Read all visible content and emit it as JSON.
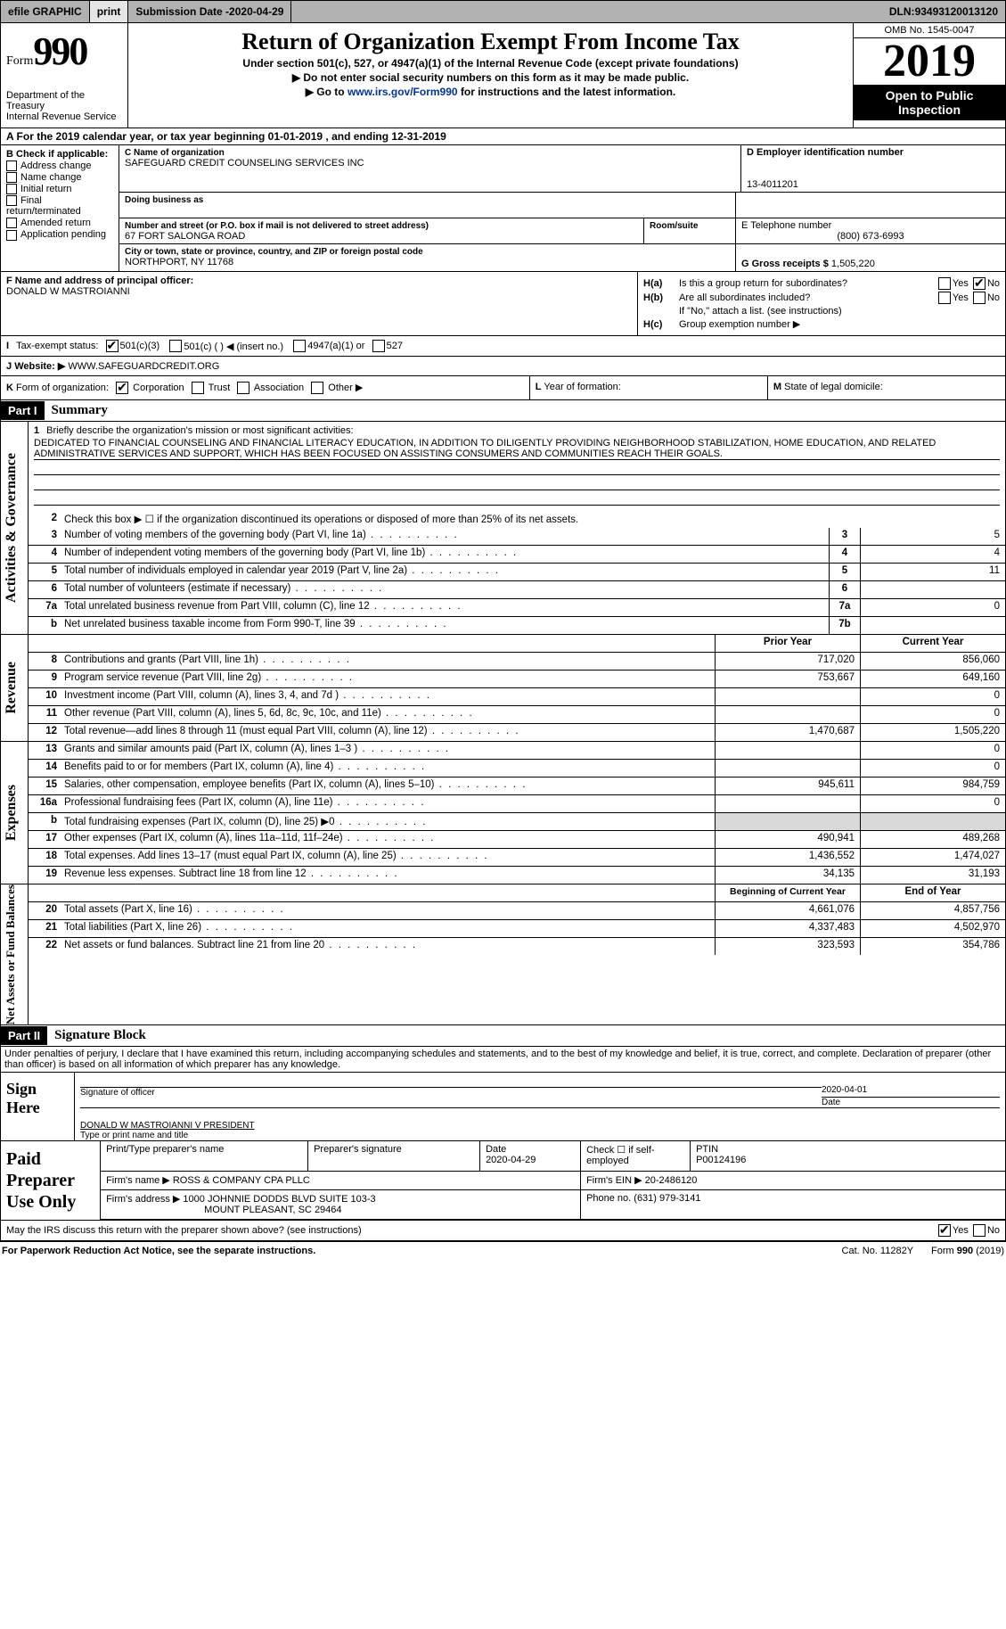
{
  "colors": {
    "topbar_bg": "#b2b2b2",
    "btn_bg": "#e6e6e6",
    "black": "#000000",
    "white": "#ffffff",
    "shade": "#d9d9d9",
    "link": "#003399"
  },
  "fonts": {
    "serif": "Times New Roman",
    "sans": "Arial",
    "title_size": 26,
    "year_size": 52,
    "form_num_size": 44,
    "body_size": 12,
    "small": 11
  },
  "topbar": {
    "efile": "efile GRAPHIC",
    "print": "print",
    "subdate_label": "Submission Date - ",
    "subdate": "2020-04-29",
    "dln_label": "DLN: ",
    "dln": "93493120013120"
  },
  "header": {
    "form_word": "Form",
    "form_num": "990",
    "dept": "Department of the Treasury\nInternal Revenue Service",
    "title": "Return of Organization Exempt From Income Tax",
    "sub1": "Under section 501(c), 527, or 4947(a)(1) of the Internal Revenue Code (except private foundations)",
    "sub2": "▶ Do not enter social security numbers on this form as it may be made public.",
    "sub3a": "▶ Go to ",
    "sub3link": "www.irs.gov/Form990",
    "sub3b": " for instructions and the latest information.",
    "omb": "OMB No. 1545-0047",
    "year": "2019",
    "otp": "Open to Public Inspection"
  },
  "lineA": {
    "left": "A  For the 2019 calendar year, or tax year beginning ",
    "begin": "01-01-2019",
    "mid": "  , and ending ",
    "end": "12-31-2019"
  },
  "boxB": {
    "label": "B Check if applicable:",
    "items": [
      "Address change",
      "Name change",
      "Initial return",
      "Final return/terminated",
      "Amended return",
      "Application pending"
    ]
  },
  "boxC": {
    "name_label": "C Name of organization",
    "name": "SAFEGUARD CREDIT COUNSELING SERVICES INC",
    "dba_label": "Doing business as",
    "dba": "",
    "street_label": "Number and street (or P.O. box if mail is not delivered to street address)",
    "room_label": "Room/suite",
    "street": "67 FORT SALONGA ROAD",
    "room": "",
    "city_label": "City or town, state or province, country, and ZIP or foreign postal code",
    "city": "NORTHPORT, NY  11768"
  },
  "boxD": {
    "label": "D Employer identification number",
    "value": "13-4011201"
  },
  "boxE": {
    "label": "E Telephone number",
    "value": "(800) 673-6993"
  },
  "boxG": {
    "label": "G Gross receipts $ ",
    "value": "1,505,220"
  },
  "boxF": {
    "label": "F Name and address of principal officer:",
    "value": "DONALD W MASTROIANNI"
  },
  "boxH": {
    "a_label": "H(a)",
    "a_q": "Is this a group return for subordinates?",
    "a_yes": "Yes",
    "a_no": "No",
    "a_checked": "No",
    "b_label": "H(b)",
    "b_q": "Are all subordinates included?",
    "b_yes": "Yes",
    "b_no": "No",
    "note": "If \"No,\" attach a list. (see instructions)",
    "c_label": "H(c)",
    "c_q": "Group exemption number ▶"
  },
  "lineI": {
    "label": "I",
    "txt": "Tax-exempt status:",
    "opts": [
      "501(c)(3)",
      "501(c) (     ) ◀ (insert no.)",
      "4947(a)(1) or",
      "527"
    ],
    "checked": 0
  },
  "lineJ": {
    "label": "J",
    "txt": "Website: ▶",
    "value": "WWW.SAFEGUARDCREDIT.ORG"
  },
  "lineK": {
    "label": "K",
    "txt": "Form of organization:",
    "opts": [
      "Corporation",
      "Trust",
      "Association",
      "Other ▶"
    ],
    "checked": 0
  },
  "lineL": {
    "label": "L",
    "txt": "Year of formation:",
    "value": ""
  },
  "lineM": {
    "label": "M",
    "txt": "State of legal domicile:",
    "value": ""
  },
  "part1": {
    "label": "Part I",
    "title": "Summary"
  },
  "mission": {
    "num": "1",
    "label": "Briefly describe the organization's mission or most significant activities:",
    "text": "DEDICATED TO FINANCIAL COUNSELING AND FINANCIAL LITERACY EDUCATION, IN ADDITION TO DILIGENTLY PROVIDING NEIGHBORHOOD STABILIZATION, HOME EDUCATION, AND RELATED ADMINISTRATIVE SERVICES AND SUPPORT, WHICH HAS BEEN FOCUSED ON ASSISTING CONSUMERS AND COMMUNITIES REACH THEIR GOALS."
  },
  "gov": {
    "sidelabel": "Activities & Governance",
    "line2": "Check this box ▶ ☐ if the organization discontinued its operations or disposed of more than 25% of its net assets.",
    "rows": [
      {
        "num": "3",
        "txt": "Number of voting members of the governing body (Part VI, line 1a)",
        "rnum": "3",
        "val": "5"
      },
      {
        "num": "4",
        "txt": "Number of independent voting members of the governing body (Part VI, line 1b)",
        "rnum": "4",
        "val": "4"
      },
      {
        "num": "5",
        "txt": "Total number of individuals employed in calendar year 2019 (Part V, line 2a)",
        "rnum": "5",
        "val": "11"
      },
      {
        "num": "6",
        "txt": "Total number of volunteers (estimate if necessary)",
        "rnum": "6",
        "val": ""
      },
      {
        "num": "7a",
        "txt": "Total unrelated business revenue from Part VIII, column (C), line 12",
        "rnum": "7a",
        "val": "0"
      },
      {
        "num": "b",
        "txt": "Net unrelated business taxable income from Form 990-T, line 39",
        "rnum": "7b",
        "val": ""
      }
    ]
  },
  "rev": {
    "sidelabel": "Revenue",
    "hdr1": "Prior Year",
    "hdr2": "Current Year",
    "rows": [
      {
        "num": "8",
        "txt": "Contributions and grants (Part VIII, line 1h)",
        "v1": "717,020",
        "v2": "856,060"
      },
      {
        "num": "9",
        "txt": "Program service revenue (Part VIII, line 2g)",
        "v1": "753,667",
        "v2": "649,160"
      },
      {
        "num": "10",
        "txt": "Investment income (Part VIII, column (A), lines 3, 4, and 7d )",
        "v1": "",
        "v2": "0"
      },
      {
        "num": "11",
        "txt": "Other revenue (Part VIII, column (A), lines 5, 6d, 8c, 9c, 10c, and 11e)",
        "v1": "",
        "v2": "0"
      },
      {
        "num": "12",
        "txt": "Total revenue—add lines 8 through 11 (must equal Part VIII, column (A), line 12)",
        "v1": "1,470,687",
        "v2": "1,505,220"
      }
    ]
  },
  "exp": {
    "sidelabel": "Expenses",
    "rows": [
      {
        "num": "13",
        "txt": "Grants and similar amounts paid (Part IX, column (A), lines 1–3 )",
        "v1": "",
        "v2": "0"
      },
      {
        "num": "14",
        "txt": "Benefits paid to or for members (Part IX, column (A), line 4)",
        "v1": "",
        "v2": "0"
      },
      {
        "num": "15",
        "txt": "Salaries, other compensation, employee benefits (Part IX, column (A), lines 5–10)",
        "v1": "945,611",
        "v2": "984,759"
      },
      {
        "num": "16a",
        "txt": "Professional fundraising fees (Part IX, column (A), line 11e)",
        "v1": "",
        "v2": "0"
      },
      {
        "num": "b",
        "txt": "Total fundraising expenses (Part IX, column (D), line 25) ▶0",
        "v1": "shade",
        "v2": "shade"
      },
      {
        "num": "17",
        "txt": "Other expenses (Part IX, column (A), lines 11a–11d, 11f–24e)",
        "v1": "490,941",
        "v2": "489,268"
      },
      {
        "num": "18",
        "txt": "Total expenses. Add lines 13–17 (must equal Part IX, column (A), line 25)",
        "v1": "1,436,552",
        "v2": "1,474,027"
      },
      {
        "num": "19",
        "txt": "Revenue less expenses. Subtract line 18 from line 12",
        "v1": "34,135",
        "v2": "31,193"
      }
    ]
  },
  "net": {
    "sidelabel": "Net Assets or Fund Balances",
    "hdr1": "Beginning of Current Year",
    "hdr2": "End of Year",
    "rows": [
      {
        "num": "20",
        "txt": "Total assets (Part X, line 16)",
        "v1": "4,661,076",
        "v2": "4,857,756"
      },
      {
        "num": "21",
        "txt": "Total liabilities (Part X, line 26)",
        "v1": "4,337,483",
        "v2": "4,502,970"
      },
      {
        "num": "22",
        "txt": "Net assets or fund balances. Subtract line 21 from line 20",
        "v1": "323,593",
        "v2": "354,786"
      }
    ]
  },
  "part2": {
    "label": "Part II",
    "title": "Signature Block"
  },
  "penalty": "Under penalties of perjury, I declare that I have examined this return, including accompanying schedules and statements, and to the best of my knowledge and belief, it is true, correct, and complete. Declaration of preparer (other than officer) is based on all information of which preparer has any knowledge.",
  "sign": {
    "left": "Sign Here",
    "sig_label": "Signature of officer",
    "date_label": "Date",
    "date": "2020-04-01",
    "name": "DONALD W MASTROIANNI  V PRESIDENT",
    "name_label": "Type or print name and title"
  },
  "prep": {
    "left": "Paid Preparer Use Only",
    "r1": {
      "c1_label": "Print/Type preparer's name",
      "c1": "",
      "c2_label": "Preparer's signature",
      "c2": "",
      "c3_label": "Date",
      "c3": "2020-04-29",
      "c4_label": "Check ☐ if self-employed",
      "c5_label": "PTIN",
      "c5": "P00124196"
    },
    "r2": {
      "label": "Firm's name    ▶",
      "value": "ROSS & COMPANY CPA PLLC",
      "ein_label": "Firm's EIN ▶",
      "ein": "20-2486120"
    },
    "r3": {
      "label": "Firm's address ▶",
      "value": "1000 JOHNNIE DODDS BLVD SUITE 103-3",
      "city": "MOUNT PLEASANT, SC  29464",
      "phone_label": "Phone no.",
      "phone": "(631) 979-3141"
    }
  },
  "discuss": {
    "txt": "May the IRS discuss this return with the preparer shown above? (see instructions)",
    "yes": "Yes",
    "no": "No",
    "checked": "Yes"
  },
  "footer": {
    "left": "For Paperwork Reduction Act Notice, see the separate instructions.",
    "cat": "Cat. No. 11282Y",
    "right": "Form 990 (2019)"
  }
}
